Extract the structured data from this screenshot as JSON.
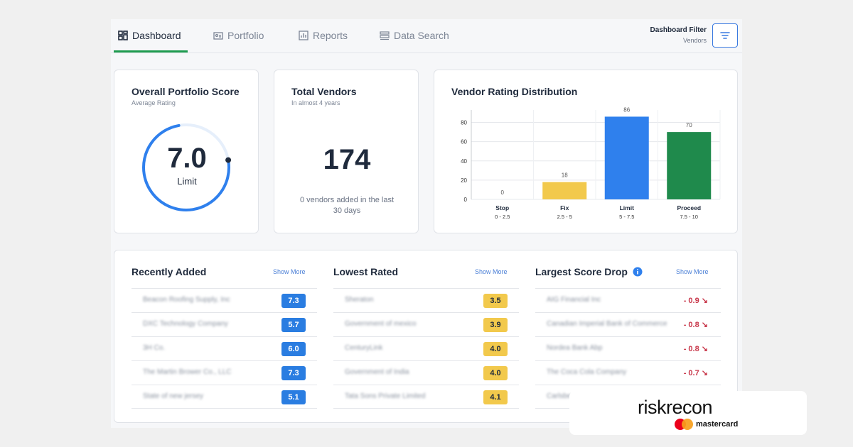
{
  "nav": {
    "tabs": [
      {
        "label": "Dashboard",
        "icon": "dashboard-icon",
        "active": true
      },
      {
        "label": "Portfolio",
        "icon": "portfolio-icon",
        "active": false
      },
      {
        "label": "Reports",
        "icon": "reports-icon",
        "active": false
      },
      {
        "label": "Data Search",
        "icon": "data-search-icon",
        "active": false
      }
    ],
    "filter": {
      "title": "Dashboard Filter",
      "value": "Vendors",
      "icon": "filter-icon"
    }
  },
  "score_card": {
    "title": "Overall Portfolio Score",
    "subtitle": "Average Rating",
    "score": "7.0",
    "label": "Limit",
    "score_fraction": 0.7,
    "accent": "#2f80ed"
  },
  "vendors_card": {
    "title": "Total Vendors",
    "subtitle": "In almost 4 years",
    "count": "174",
    "note_line1": "0 vendors added in the last",
    "note_line2": "30 days"
  },
  "chart_card": {
    "title": "Vendor Rating Distribution"
  },
  "chart_data": {
    "type": "bar",
    "title": "Vendor Rating Distribution",
    "categories": [
      "Stop",
      "Fix",
      "Limit",
      "Proceed"
    ],
    "ranges": [
      "0 - 2.5",
      "2.5 - 5",
      "5 - 7.5",
      "7.5 - 10"
    ],
    "values": [
      0,
      18,
      86,
      70
    ],
    "colors": [
      "#f5f5f5",
      "#f2c94c",
      "#2f80ed",
      "#1f8a4c"
    ],
    "ylim": [
      0,
      90
    ],
    "yticks": [
      0,
      20,
      40,
      60,
      80
    ],
    "grid": true
  },
  "recently_added": {
    "title": "Recently Added",
    "show_more": "Show More",
    "rows": [
      {
        "name": "Beacon Roofing Supply, Inc",
        "score": "7.3"
      },
      {
        "name": "DXC Technology Company",
        "score": "5.7"
      },
      {
        "name": "3H Co.",
        "score": "6.0"
      },
      {
        "name": "The Martin Brower Co., LLC",
        "score": "7.3"
      },
      {
        "name": "State of new jersey",
        "score": "5.1"
      }
    ]
  },
  "lowest_rated": {
    "title": "Lowest Rated",
    "show_more": "Show More",
    "rows": [
      {
        "name": "Sheraton",
        "score": "3.5"
      },
      {
        "name": "Government of mexico",
        "score": "3.9"
      },
      {
        "name": "CenturyLink",
        "score": "4.0"
      },
      {
        "name": "Government of India",
        "score": "4.0"
      },
      {
        "name": "Tata Sons Private Limited",
        "score": "4.1"
      }
    ]
  },
  "largest_drop": {
    "title": "Largest Score Drop",
    "info_icon": "info-icon",
    "show_more": "Show More",
    "rows": [
      {
        "name": "AIG Financial Inc",
        "delta": "- 0.9 ↘"
      },
      {
        "name": "Canadian Imperial Bank of Commerce",
        "delta": "- 0.8 ↘"
      },
      {
        "name": "Nordea Bank Abp",
        "delta": "- 0.8 ↘"
      },
      {
        "name": "The Coca Cola Company",
        "delta": "- 0.7 ↘"
      },
      {
        "name": "Carlsberg",
        "delta": ""
      }
    ]
  },
  "brand": {
    "name": "riskrecon",
    "partner": "mastercard",
    "partner_colors": [
      "#eb001b",
      "#f79e1b"
    ]
  }
}
